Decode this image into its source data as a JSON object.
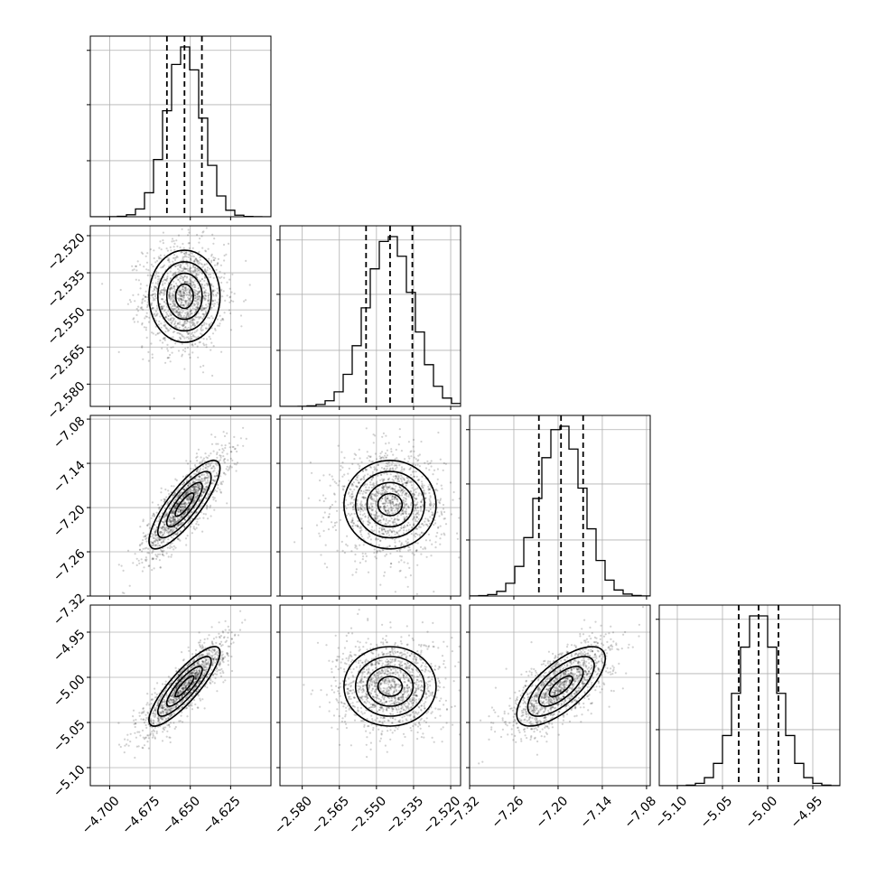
{
  "chart_data": {
    "type": "corner",
    "parameters": [
      {
        "range": [
          -4.712,
          -4.6
        ],
        "ticks": [
          -4.7,
          -4.675,
          -4.65,
          -4.625
        ],
        "tick_labels": [
          "−4.700",
          "−4.675",
          "−4.650",
          "−4.625"
        ],
        "quantiles": [
          -4.6645,
          -4.6536,
          -4.6428
        ],
        "mean": -4.6536,
        "sd": 0.011
      },
      {
        "range": [
          -2.589,
          -2.516
        ],
        "ticks": [
          -2.58,
          -2.565,
          -2.55,
          -2.535,
          -2.52
        ],
        "tick_labels": [
          "−2.580",
          "−2.565",
          "−2.550",
          "−2.535",
          "−2.520"
        ],
        "quantiles": [
          -2.5542,
          -2.5445,
          -2.5355
        ],
        "mean": -2.5445,
        "sd": 0.0093
      },
      {
        "range": [
          -7.32,
          -7.075
        ],
        "ticks": [
          -7.32,
          -7.26,
          -7.2,
          -7.14,
          -7.08
        ],
        "tick_labels": [
          "−7.32",
          "−7.26",
          "−7.20",
          "−7.14",
          "−7.08"
        ],
        "quantiles": [
          -7.226,
          -7.196,
          -7.166
        ],
        "mean": -7.196,
        "sd": 0.03
      },
      {
        "range": [
          -5.12,
          -4.92
        ],
        "ticks": [
          -5.1,
          -5.05,
          -5.0,
          -4.95
        ],
        "tick_labels": [
          "−5.10",
          "−5.05",
          "−5.00",
          "−4.95"
        ],
        "quantiles": [
          -5.032,
          -5.01,
          -4.988
        ],
        "mean": -5.01,
        "sd": 0.022
      }
    ],
    "correlations": {
      "1-0": 0.0,
      "2-0": 0.82,
      "2-1": 0.0,
      "3-0": 0.85,
      "3-1": 0.0,
      "3-2": 0.7
    },
    "histogram_bins": 20,
    "contour_levels_sigma": [
      0.5,
      1.0,
      1.5,
      2.0
    ],
    "colors": {
      "line": "#000000",
      "grid": "#b0b0b0",
      "density": "#000000"
    }
  }
}
